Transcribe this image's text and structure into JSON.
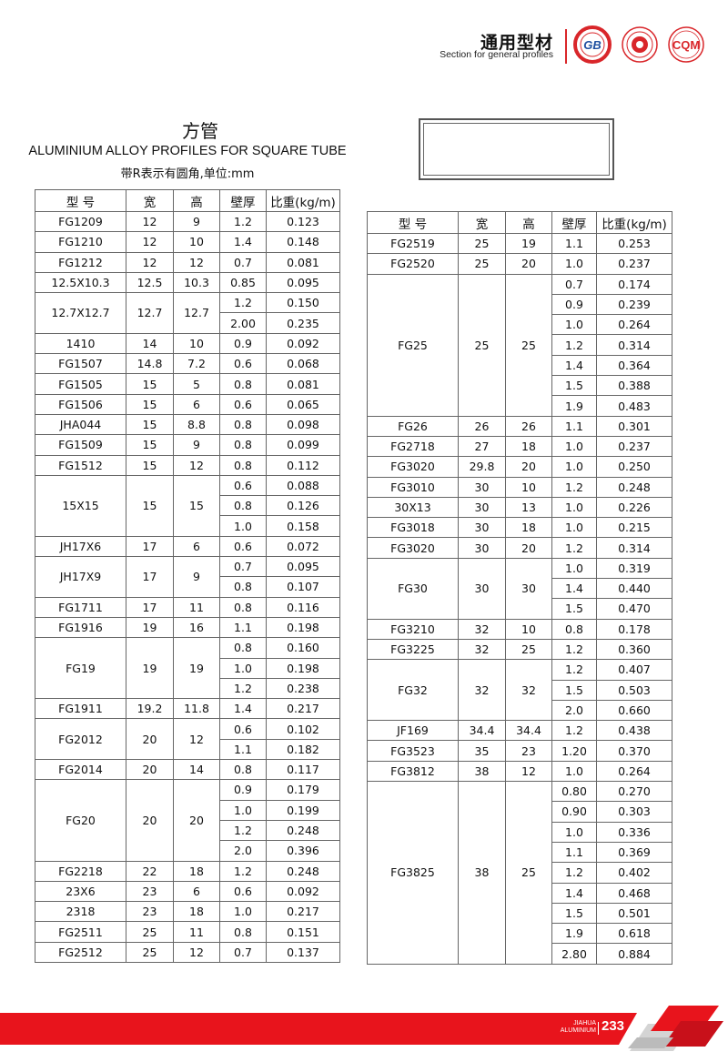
{
  "header": {
    "title": "通用型材",
    "subtitle": "Section for general profiles",
    "logos": [
      {
        "name": "gb-logo",
        "text": "GB"
      },
      {
        "name": "certification-seal-logo",
        "text": ""
      },
      {
        "name": "cqm-logo",
        "text": "CQM"
      }
    ],
    "accent_color": "#d9262a"
  },
  "title": {
    "cn": "方管",
    "en": "ALUMINIUM ALLOY PROFILES FOR SQUARE TUBE",
    "unit_note": "带R表示有圆角,单位:mm"
  },
  "columns": [
    "型  号",
    "宽",
    "高",
    "壁厚",
    "比重(kg/m)"
  ],
  "left_table": [
    {
      "model": "FG1209",
      "w": "12",
      "h": "9",
      "v": [
        [
          "1.2",
          "0.123"
        ]
      ]
    },
    {
      "model": "FG1210",
      "w": "12",
      "h": "10",
      "v": [
        [
          "1.4",
          "0.148"
        ]
      ]
    },
    {
      "model": "FG1212",
      "w": "12",
      "h": "12",
      "v": [
        [
          "0.7",
          "0.081"
        ]
      ]
    },
    {
      "model": "12.5X10.3",
      "w": "12.5",
      "h": "10.3",
      "v": [
        [
          "0.85",
          "0.095"
        ]
      ]
    },
    {
      "model": "12.7X12.7",
      "w": "12.7",
      "h": "12.7",
      "v": [
        [
          "1.2",
          "0.150"
        ],
        [
          "2.00",
          "0.235"
        ]
      ]
    },
    {
      "model": "1410",
      "w": "14",
      "h": "10",
      "v": [
        [
          "0.9",
          "0.092"
        ]
      ]
    },
    {
      "model": "FG1507",
      "w": "14.8",
      "h": "7.2",
      "v": [
        [
          "0.6",
          "0.068"
        ]
      ]
    },
    {
      "model": "FG1505",
      "w": "15",
      "h": "5",
      "v": [
        [
          "0.8",
          "0.081"
        ]
      ]
    },
    {
      "model": "FG1506",
      "w": "15",
      "h": "6",
      "v": [
        [
          "0.6",
          "0.065"
        ]
      ]
    },
    {
      "model": "JHA044",
      "w": "15",
      "h": "8.8",
      "v": [
        [
          "0.8",
          "0.098"
        ]
      ]
    },
    {
      "model": "FG1509",
      "w": "15",
      "h": "9",
      "v": [
        [
          "0.8",
          "0.099"
        ]
      ]
    },
    {
      "model": "FG1512",
      "w": "15",
      "h": "12",
      "v": [
        [
          "0.8",
          "0.112"
        ]
      ]
    },
    {
      "model": "15X15",
      "w": "15",
      "h": "15",
      "v": [
        [
          "0.6",
          "0.088"
        ],
        [
          "0.8",
          "0.126"
        ],
        [
          "1.0",
          "0.158"
        ]
      ]
    },
    {
      "model": "JH17X6",
      "w": "17",
      "h": "6",
      "v": [
        [
          "0.6",
          "0.072"
        ]
      ]
    },
    {
      "model": "JH17X9",
      "w": "17",
      "h": "9",
      "v": [
        [
          "0.7",
          "0.095"
        ],
        [
          "0.8",
          "0.107"
        ]
      ]
    },
    {
      "model": "FG1711",
      "w": "17",
      "h": "11",
      "v": [
        [
          "0.8",
          "0.116"
        ]
      ]
    },
    {
      "model": "FG1916",
      "w": "19",
      "h": "16",
      "v": [
        [
          "1.1",
          "0.198"
        ]
      ]
    },
    {
      "model": "FG19",
      "w": "19",
      "h": "19",
      "v": [
        [
          "0.8",
          "0.160"
        ],
        [
          "1.0",
          "0.198"
        ],
        [
          "1.2",
          "0.238"
        ]
      ]
    },
    {
      "model": "FG1911",
      "w": "19.2",
      "h": "11.8",
      "v": [
        [
          "1.4",
          "0.217"
        ]
      ]
    },
    {
      "model": "FG2012",
      "w": "20",
      "h": "12",
      "v": [
        [
          "0.6",
          "0.102"
        ],
        [
          "1.1",
          "0.182"
        ]
      ]
    },
    {
      "model": "FG2014",
      "w": "20",
      "h": "14",
      "v": [
        [
          "0.8",
          "0.117"
        ]
      ]
    },
    {
      "model": "FG20",
      "w": "20",
      "h": "20",
      "v": [
        [
          "0.9",
          "0.179"
        ],
        [
          "1.0",
          "0.199"
        ],
        [
          "1.2",
          "0.248"
        ],
        [
          "2.0",
          "0.396"
        ]
      ]
    },
    {
      "model": "FG2218",
      "w": "22",
      "h": "18",
      "v": [
        [
          "1.2",
          "0.248"
        ]
      ]
    },
    {
      "model": "23X6",
      "w": "23",
      "h": "6",
      "v": [
        [
          "0.6",
          "0.092"
        ]
      ]
    },
    {
      "model": "2318",
      "w": "23",
      "h": "18",
      "v": [
        [
          "1.0",
          "0.217"
        ]
      ]
    },
    {
      "model": "FG2511",
      "w": "25",
      "h": "11",
      "v": [
        [
          "0.8",
          "0.151"
        ]
      ]
    },
    {
      "model": "FG2512",
      "w": "25",
      "h": "12",
      "v": [
        [
          "0.7",
          "0.137"
        ]
      ]
    }
  ],
  "right_table": [
    {
      "model": "FG2519",
      "w": "25",
      "h": "19",
      "v": [
        [
          "1.1",
          "0.253"
        ]
      ]
    },
    {
      "model": "FG2520",
      "w": "25",
      "h": "20",
      "v": [
        [
          "1.0",
          "0.237"
        ]
      ]
    },
    {
      "model": "FG25",
      "w": "25",
      "h": "25",
      "v": [
        [
          "0.7",
          "0.174"
        ],
        [
          "0.9",
          "0.239"
        ],
        [
          "1.0",
          "0.264"
        ],
        [
          "1.2",
          "0.314"
        ],
        [
          "1.4",
          "0.364"
        ],
        [
          "1.5",
          "0.388"
        ],
        [
          "1.9",
          "0.483"
        ]
      ]
    },
    {
      "model": "FG26",
      "w": "26",
      "h": "26",
      "v": [
        [
          "1.1",
          "0.301"
        ]
      ]
    },
    {
      "model": "FG2718",
      "w": "27",
      "h": "18",
      "v": [
        [
          "1.0",
          "0.237"
        ]
      ]
    },
    {
      "model": "FG3020",
      "w": "29.8",
      "h": "20",
      "v": [
        [
          "1.0",
          "0.250"
        ]
      ]
    },
    {
      "model": "FG3010",
      "w": "30",
      "h": "10",
      "v": [
        [
          "1.2",
          "0.248"
        ]
      ]
    },
    {
      "model": "30X13",
      "w": "30",
      "h": "13",
      "v": [
        [
          "1.0",
          "0.226"
        ]
      ]
    },
    {
      "model": "FG3018",
      "w": "30",
      "h": "18",
      "v": [
        [
          "1.0",
          "0.215"
        ]
      ]
    },
    {
      "model": "FG3020",
      "w": "30",
      "h": "20",
      "v": [
        [
          "1.2",
          "0.314"
        ]
      ]
    },
    {
      "model": "FG30",
      "w": "30",
      "h": "30",
      "v": [
        [
          "1.0",
          "0.319"
        ],
        [
          "1.4",
          "0.440"
        ],
        [
          "1.5",
          "0.470"
        ]
      ]
    },
    {
      "model": "FG3210",
      "w": "32",
      "h": "10",
      "v": [
        [
          "0.8",
          "0.178"
        ]
      ]
    },
    {
      "model": "FG3225",
      "w": "32",
      "h": "25",
      "v": [
        [
          "1.2",
          "0.360"
        ]
      ]
    },
    {
      "model": "FG32",
      "w": "32",
      "h": "32",
      "v": [
        [
          "1.2",
          "0.407"
        ],
        [
          "1.5",
          "0.503"
        ],
        [
          "2.0",
          "0.660"
        ]
      ]
    },
    {
      "model": "JF169",
      "w": "34.4",
      "h": "34.4",
      "v": [
        [
          "1.2",
          "0.438"
        ]
      ]
    },
    {
      "model": "FG3523",
      "w": "35",
      "h": "23",
      "v": [
        [
          "1.20",
          "0.370"
        ]
      ]
    },
    {
      "model": "FG3812",
      "w": "38",
      "h": "12",
      "v": [
        [
          "1.0",
          "0.264"
        ]
      ]
    },
    {
      "model": "FG3825",
      "w": "38",
      "h": "25",
      "v": [
        [
          "0.80",
          "0.270"
        ],
        [
          "0.90",
          "0.303"
        ],
        [
          "1.0",
          "0.336"
        ],
        [
          "1.1",
          "0.369"
        ],
        [
          "1.2",
          "0.402"
        ],
        [
          "1.4",
          "0.468"
        ],
        [
          "1.5",
          "0.501"
        ],
        [
          "1.9",
          "0.618"
        ],
        [
          "2.80",
          "0.884"
        ]
      ]
    }
  ],
  "footer": {
    "brand_line1": "JIAHUA",
    "brand_line2": "ALUMINIUM",
    "page_number": "233",
    "accent_color": "#e8141c"
  }
}
